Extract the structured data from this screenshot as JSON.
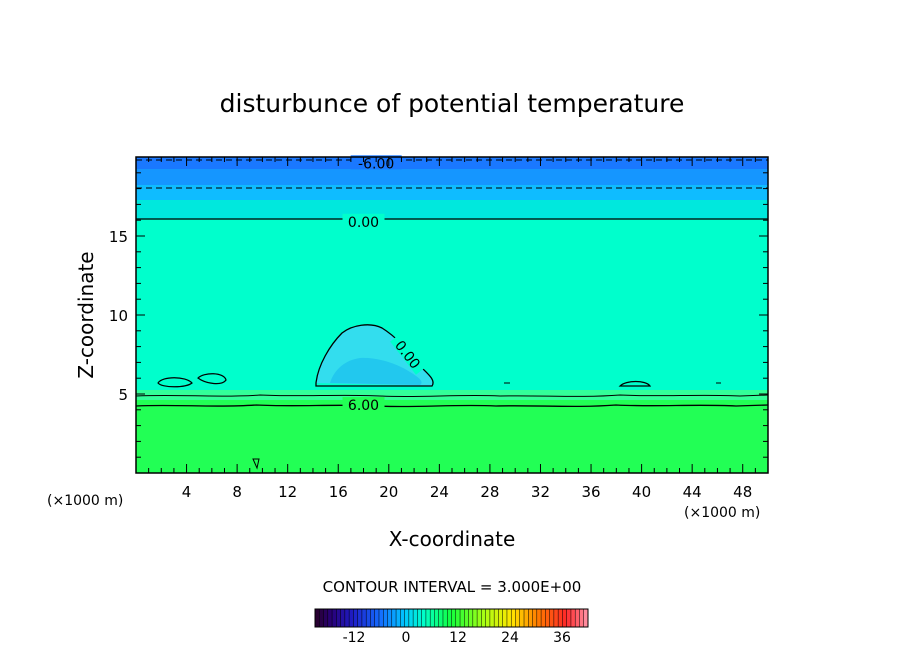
{
  "chart_data": {
    "type": "heatmap",
    "title": "disturbunce of potential temperature",
    "xlabel": "X-coordinate",
    "ylabel": "Z-coordinate",
    "x_unit": "(×1000 m)",
    "y_unit": "(×1000 m)",
    "xlim": [
      0,
      50
    ],
    "ylim": [
      0,
      20
    ],
    "x_ticks": [
      4,
      8,
      12,
      16,
      20,
      24,
      28,
      32,
      36,
      40,
      44,
      48
    ],
    "y_ticks": [
      5,
      10,
      15
    ],
    "contour_interval_label": "CONTOUR INTERVAL = 3.000E+00",
    "contour_labels": [
      {
        "text": "-6.00",
        "x": 19,
        "z": 19.6
      },
      {
        "text": "0.00",
        "x": 18,
        "z": 15.9
      },
      {
        "text": "0.00",
        "x": 21.5,
        "z": 7.5
      },
      {
        "text": "6.00",
        "x": 18,
        "z": 4.3
      }
    ],
    "colorbar": {
      "range": [
        -21,
        42
      ],
      "ticks": [
        -12,
        0,
        12,
        24,
        36
      ]
    },
    "colors": {
      "top_band_1": "#1a78ff",
      "top_band_2": "#1596ff",
      "top_band_3": "#0fbcff",
      "mid": "#00ffcc",
      "low": "#22ff55",
      "bump_1": "#33ddee",
      "bump_2": "#22c8ee"
    }
  }
}
